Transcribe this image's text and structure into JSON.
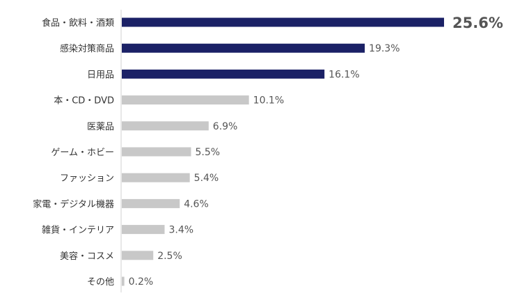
{
  "chart_data": {
    "type": "bar",
    "orientation": "horizontal",
    "categories": [
      "食品・飲料・酒類",
      "感染対策商品",
      "日用品",
      "本・CD・DVD",
      "医薬品",
      "ゲーム・ホビー",
      "ファッション",
      "家電・デジタル機器",
      "雑貨・インテリア",
      "美容・コスメ",
      "その他"
    ],
    "values": [
      25.6,
      19.3,
      16.1,
      10.1,
      6.9,
      5.5,
      5.4,
      4.6,
      3.4,
      2.5,
      0.2
    ],
    "value_labels": [
      "25.6%",
      "19.3%",
      "16.1%",
      "10.1%",
      "6.9%",
      "5.5%",
      "5.4%",
      "4.6%",
      "3.4%",
      "2.5%",
      "0.2%"
    ],
    "highlighted_count": 3,
    "xlim": [
      0,
      25.6
    ],
    "grid": false,
    "legend": "none",
    "title": "",
    "xlabel": "",
    "ylabel": ""
  },
  "colors": {
    "highlight_bar": "#1b2166",
    "normal_bar": "#c8c8c8",
    "top_value_label": "#f0a22b",
    "value_label": "#555555",
    "axis": "#d0d0d0"
  }
}
